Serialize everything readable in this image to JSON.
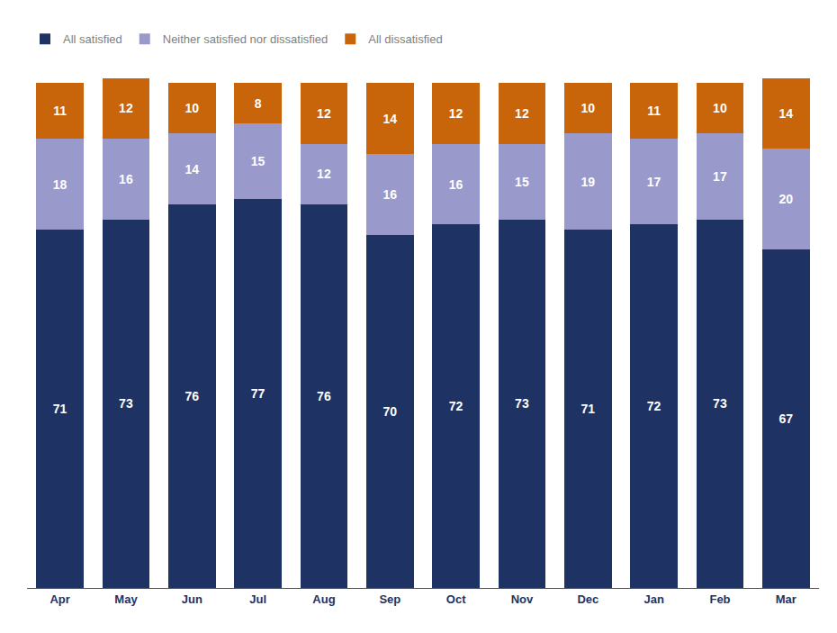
{
  "chart_data": {
    "type": "bar",
    "stacked": true,
    "categories": [
      "Apr",
      "May",
      "Jun",
      "Jul",
      "Aug",
      "Sep",
      "Oct",
      "Nov",
      "Dec",
      "Jan",
      "Feb",
      "Mar"
    ],
    "series": [
      {
        "name": "All satisfied",
        "color": "#1e3264",
        "values": [
          71,
          73,
          76,
          77,
          76,
          70,
          72,
          73,
          71,
          72,
          73,
          67
        ]
      },
      {
        "name": "Neither satisfied nor dissatisfied",
        "color": "#9999cc",
        "values": [
          18,
          16,
          14,
          15,
          12,
          16,
          16,
          15,
          19,
          17,
          17,
          20
        ]
      },
      {
        "name": "All dissatisfied",
        "color": "#c8650a",
        "values": [
          11,
          12,
          10,
          8,
          12,
          14,
          12,
          12,
          10,
          11,
          10,
          14
        ]
      }
    ],
    "ylim": [
      0,
      104
    ],
    "tick_labels": "x",
    "grid": false,
    "data_labels": true,
    "legend": "upper left"
  }
}
